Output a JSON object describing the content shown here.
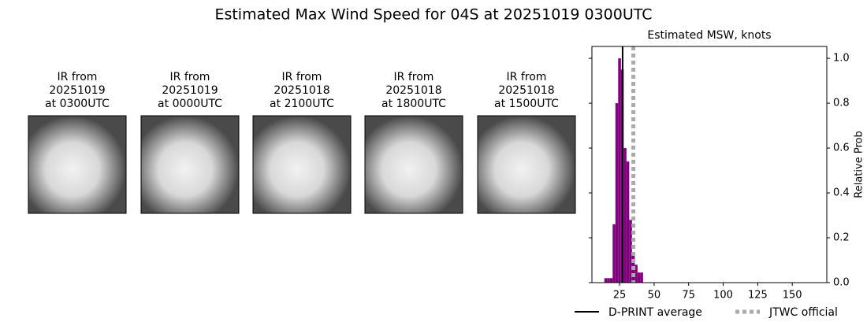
{
  "title": "Estimated Max Wind Speed for 04S at 20251019 0300UTC",
  "panels": [
    {
      "lines": [
        "IR from",
        "20251019",
        "at 0300UTC"
      ]
    },
    {
      "lines": [
        "IR from",
        "20251019",
        "at 0000UTC"
      ]
    },
    {
      "lines": [
        "IR from",
        "20251018",
        "at 2100UTC"
      ]
    },
    {
      "lines": [
        "IR from",
        "20251018",
        "at 1800UTC"
      ]
    },
    {
      "lines": [
        "IR from",
        "20251018",
        "at 1500UTC"
      ]
    }
  ],
  "chart_data": {
    "type": "histogram",
    "title": "Estimated MSW, knots",
    "ylabel": "Relative Prob",
    "color": "#800080",
    "bins": [
      14,
      16,
      18,
      20,
      22,
      24,
      26,
      28,
      30,
      32,
      34,
      36,
      38,
      40,
      42
    ],
    "values": [
      0.02,
      0.02,
      0.02,
      0.26,
      0.8,
      1.0,
      0.95,
      0.6,
      0.54,
      0.28,
      0.13,
      0.08,
      0.045,
      0.045
    ],
    "xlim": [
      5,
      175
    ],
    "ylim": [
      0,
      1.053
    ],
    "xticks": [
      25,
      50,
      75,
      100,
      125,
      150
    ],
    "yticks": [
      {
        "value": 0,
        "label": "0.0"
      },
      0.2,
      0.4,
      0.6,
      0.8,
      {
        "value": 1,
        "label": "1.0"
      }
    ],
    "reference_lines": [
      {
        "name": "D-PRINT average",
        "value": 27.2,
        "color": "#000000",
        "style": "solid"
      },
      {
        "name": "JTWC official",
        "value": 35,
        "color": "#aaaaaa",
        "style": "dotted"
      }
    ]
  }
}
